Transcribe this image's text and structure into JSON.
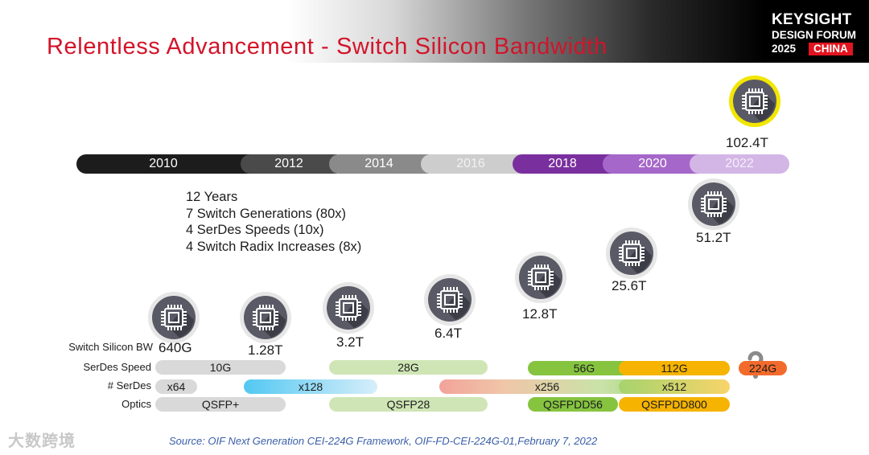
{
  "slide": {
    "title": "Relentless Advancement - Switch Silicon Bandwidth",
    "logo": {
      "line1": "KEYSIGHT",
      "line2": "DESIGN FORUM",
      "year": "2025",
      "badge": "CHINA"
    },
    "timeline_years": [
      "2010",
      "2012",
      "2014",
      "2016",
      "2018",
      "2020",
      "2022"
    ],
    "stats": [
      "12 Years",
      "7 Switch Generations (80x)",
      "4 SerDes Speeds (10x)",
      "4 Switch Radix Increases (8x)"
    ],
    "bandwidths": [
      "640G",
      "1.28T",
      "3.2T",
      "6.4T",
      "12.8T",
      "25.6T",
      "51.2T",
      "102.4T"
    ],
    "row_labels": {
      "switch_bw": "Switch Silicon BW",
      "serdes_speed": "SerDes Speed",
      "num_serdes": "# SerDes",
      "optics": "Optics"
    },
    "serdes_speed": [
      "10G",
      "28G",
      "56G",
      "112G",
      "224G"
    ],
    "num_serdes": [
      "x64",
      "x128",
      "x256",
      "x512"
    ],
    "optics": [
      "QSFP+",
      "QSFP28",
      "QSFPDD56",
      "QSFPDD800"
    ],
    "source": "Source: OIF Next Generation CEI-224G Framework, OIF-FD-CEI-224G-01,February 7, 2022",
    "watermark": "大数跨境",
    "colors": {
      "title": "#d2142a",
      "chip_bg": "#5a5a66",
      "highlight_ring": "#f2e600",
      "green": "#86c440",
      "orange": "#f6b300",
      "red_orange": "#f36b2c",
      "light_green": "#cfe5b5",
      "light_gray": "#d9d9d9",
      "purple": "#7a2f9e"
    }
  }
}
